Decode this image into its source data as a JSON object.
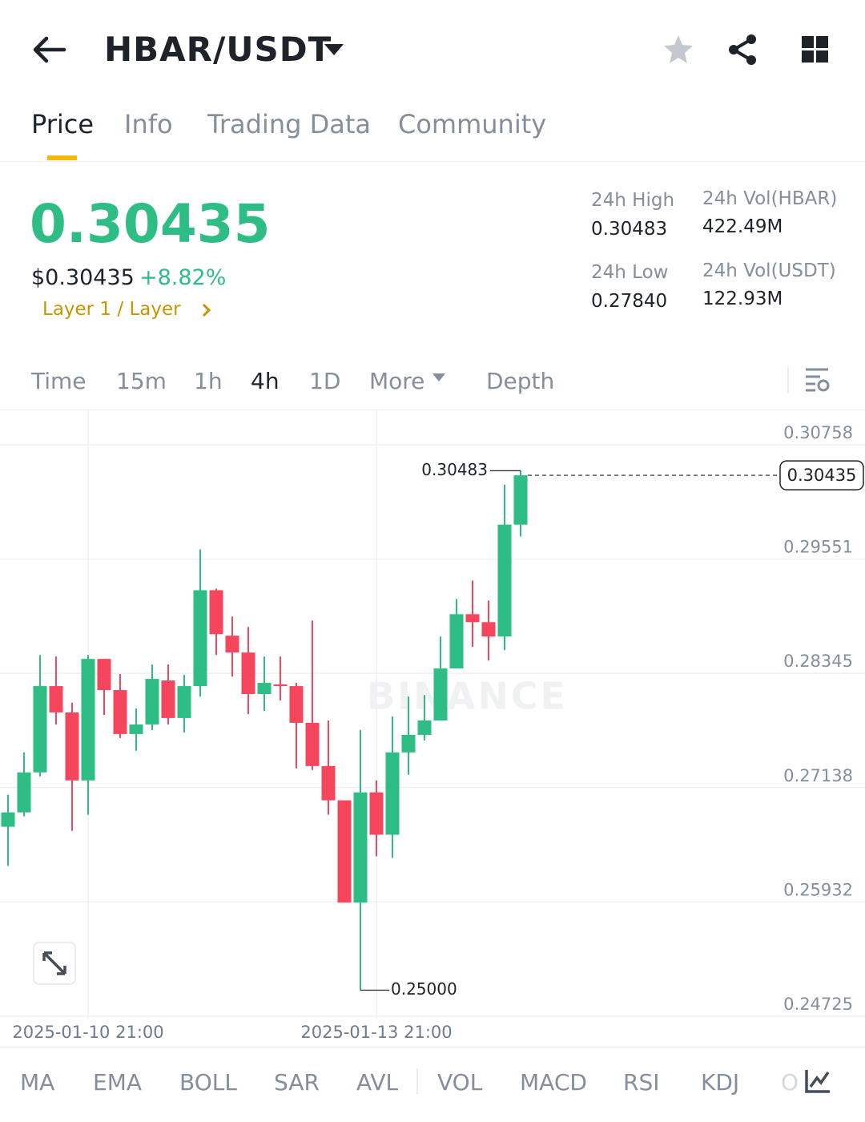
{
  "header": {
    "pair": "HBAR/USDT"
  },
  "tabs": [
    "Price",
    "Info",
    "Trading Data",
    "Community"
  ],
  "price": {
    "last": "0.30435",
    "usd": "$0.30435",
    "change": "+8.82%",
    "tag": "Layer 1 / Layer"
  },
  "stats": [
    {
      "label": "24h High",
      "value": "0.30483"
    },
    {
      "label": "24h Vol(HBAR)",
      "value": "422.49M"
    },
    {
      "label": "24h Low",
      "value": "0.27840"
    },
    {
      "label": "24h Vol(USDT)",
      "value": "122.93M"
    }
  ],
  "intervals": [
    "Time",
    "15m",
    "1h",
    "4h",
    "1D",
    "More",
    "Depth"
  ],
  "indicators": [
    "MA",
    "EMA",
    "BOLL",
    "SAR",
    "AVL",
    "VOL",
    "MACD",
    "RSI",
    "KDJ",
    "O"
  ],
  "chart_data": {
    "type": "candlestick",
    "watermark": "BINANCE",
    "categories": [
      null,
      null,
      null,
      null,
      null,
      "2025-01-10 21:00",
      null,
      null,
      null,
      null,
      null,
      null,
      null,
      null,
      null,
      null,
      null,
      null,
      null,
      null,
      null,
      null,
      null,
      "2025-01-13 21:00",
      null,
      null,
      null,
      null,
      null,
      null,
      null,
      null,
      null
    ],
    "open": [
      0.26725,
      0.26877,
      0.27299,
      0.2821,
      0.27932,
      0.27214,
      0.28497,
      0.28168,
      0.27704,
      0.27805,
      0.28269,
      0.27873,
      0.2821,
      0.29222,
      0.28742,
      0.28564,
      0.28126,
      0.28227,
      0.2821,
      0.27822,
      0.27366,
      0.27004,
      0.25924,
      0.27088,
      0.26641,
      0.2751,
      0.27695,
      0.27847,
      0.28396,
      0.28969,
      0.28885,
      0.28733,
      0.29914
    ],
    "high": [
      0.27063,
      0.2751,
      0.28539,
      0.28522,
      0.28033,
      0.28539,
      0.28497,
      0.28337,
      0.27974,
      0.28438,
      0.28438,
      0.28328,
      0.29653,
      0.29239,
      0.28944,
      0.28834,
      0.28522,
      0.28522,
      0.28244,
      0.28902,
      0.27847,
      0.27004,
      0.27746,
      0.27214,
      0.27889,
      0.281,
      0.28117,
      0.28733,
      0.2913,
      0.29324,
      0.29113,
      0.30336,
      0.30483
    ],
    "low": [
      0.26312,
      0.26835,
      0.27257,
      0.27805,
      0.26683,
      0.26852,
      0.27906,
      0.27662,
      0.27527,
      0.27746,
      0.27805,
      0.27721,
      0.281,
      0.28539,
      0.28311,
      0.27915,
      0.27948,
      0.28058,
      0.27341,
      0.27324,
      0.26852,
      0.25924,
      0.25,
      0.26413,
      0.26396,
      0.27274,
      0.27636,
      0.27847,
      0.28396,
      0.28623,
      0.2848,
      0.2859,
      0.29788
    ],
    "close": [
      0.26877,
      0.27299,
      0.2821,
      0.27932,
      0.27214,
      0.28497,
      0.28168,
      0.27704,
      0.27805,
      0.28286,
      0.27873,
      0.2821,
      0.29222,
      0.28758,
      0.28564,
      0.28126,
      0.28244,
      0.2821,
      0.27822,
      0.27366,
      0.27004,
      0.25924,
      0.27088,
      0.26641,
      0.2751,
      0.27695,
      0.27847,
      0.28396,
      0.28969,
      0.28885,
      0.28733,
      0.29914,
      0.30435
    ],
    "up_color": "#2ebd85",
    "down_color": "#f6465d",
    "ylim": [
      0.24725,
      0.31121
    ],
    "yticks": [
      0.30758,
      0.29551,
      0.28345,
      0.27138,
      0.25932,
      0.24725
    ],
    "grid": true,
    "annotations": [
      {
        "value": 0.30483,
        "label": "0.30483"
      },
      {
        "value": 0.25,
        "label": "0.25000"
      }
    ]
  }
}
